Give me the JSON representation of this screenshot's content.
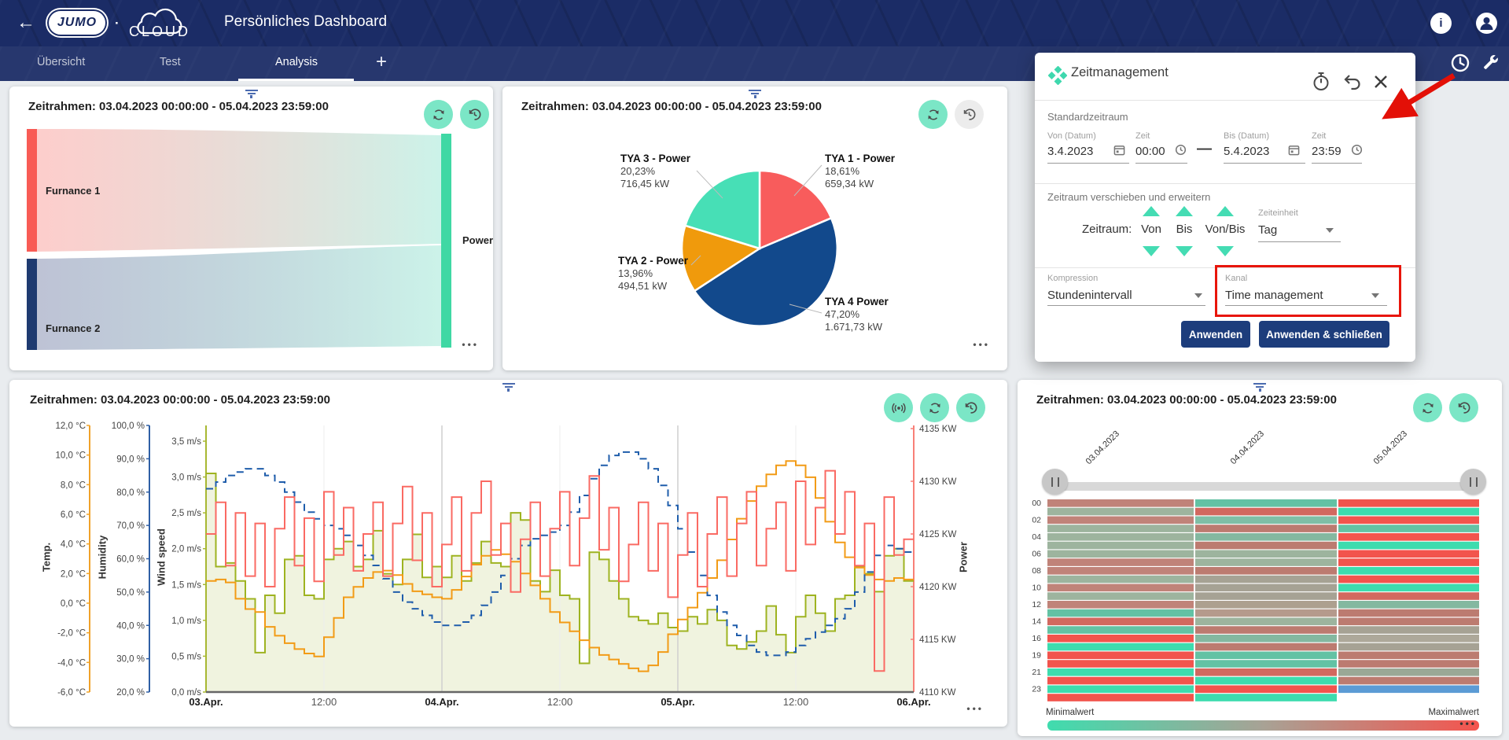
{
  "navbar": {
    "title": "Persönliches Dashboard",
    "brand": {
      "jumo": "JUMO",
      "separator": "·",
      "cloud": "CLOUD"
    }
  },
  "tabbar": {
    "tabs": [
      {
        "label": "Übersicht",
        "active": false
      },
      {
        "label": "Test",
        "active": false
      },
      {
        "label": "Analysis",
        "active": true
      }
    ],
    "add_label": "+"
  },
  "shared": {
    "timeframe_label": "Zeitrahmen: 03.04.2023 00:00:00 - 05.04.2023 23:59:00",
    "menu_dots": "•••"
  },
  "dialog": {
    "title": "Zeitmanagement",
    "standard": {
      "heading": "Standardzeitraum",
      "von_date_label": "Von (Datum)",
      "von_date": "3.4.2023",
      "von_time_label": "Zeit",
      "von_time": "00:00",
      "dash": "—",
      "bis_date_label": "Bis (Datum)",
      "bis_date": "5.4.2023",
      "bis_time_label": "Zeit",
      "bis_time": "23:59"
    },
    "shift": {
      "heading": "Zeitraum verschieben und erweitern",
      "row_label": "Zeitraum:",
      "col_von": "Von",
      "col_bis": "Bis",
      "col_vonbis": "Von/Bis",
      "unit_label": "Zeiteinheit",
      "unit_value": "Tag"
    },
    "kompression_label": "Kompression",
    "kompression_value": "Stundenintervall",
    "kanal_label": "Kanal",
    "kanal_value": "Time management",
    "apply_label": "Anwenden",
    "apply_close_label": "Anwenden & schließen"
  },
  "chart_data": [
    {
      "id": "sankey",
      "type": "sankey",
      "nodes": [
        {
          "label": "Furnance 1",
          "color": "#f85b55"
        },
        {
          "label": "Furnance 2",
          "color": "#1e3a70"
        },
        {
          "label": "Power",
          "color": "#3fd8a4"
        }
      ],
      "links": [
        {
          "source": "Furnance 1",
          "target": "Power"
        },
        {
          "source": "Furnance 2",
          "target": "Power"
        }
      ]
    },
    {
      "id": "pie",
      "type": "pie",
      "slices": [
        {
          "label": "TYA 1 - Power",
          "percent": 18.61,
          "percent_label": "18,61%",
          "value_label": "659,34 kW",
          "color": "#f85c5c"
        },
        {
          "label": "TYA 4 Power",
          "percent": 47.2,
          "percent_label": "47,20%",
          "value_label": "1.671,73 kW",
          "color": "#12498c"
        },
        {
          "label": "TYA 2 - Power",
          "percent": 13.96,
          "percent_label": "13,96%",
          "value_label": "494,51 kW",
          "color": "#f09a0c"
        },
        {
          "label": "TYA 3 - Power",
          "percent": 20.23,
          "percent_label": "20,23%",
          "value_label": "716,45 kW",
          "color": "#47dfb6"
        }
      ]
    },
    {
      "id": "timeseries",
      "type": "line",
      "axes": {
        "temp": {
          "label": "Temp.",
          "color": "#f0a22a",
          "min": -6,
          "max": 12,
          "ticks": [
            "12,0 °C",
            "10,0 °C",
            "8,0 °C",
            "6,0 °C",
            "4,0 °C",
            "2,0 °C",
            "0,0 °C",
            "-2,0 °C",
            "-4,0 °C",
            "-6,0 °C"
          ]
        },
        "humidity": {
          "label": "Humidity",
          "color": "#2f5fa5",
          "min": 20,
          "max": 100,
          "ticks": [
            "100,0 %",
            "90,0 %",
            "80,0 %",
            "70,0 %",
            "60,0 %",
            "50,0 %",
            "40,0 %",
            "30,0 %",
            "20,0 %"
          ]
        },
        "wind": {
          "label": "Wind speed",
          "color": "#a8b832",
          "min": 0,
          "max": 3.5,
          "ticks": [
            "3,5 m/s",
            "3,0 m/s",
            "2,5 m/s",
            "2,0 m/s",
            "1,5 m/s",
            "1,0 m/s",
            "0,5 m/s",
            "0,0 m/s"
          ]
        },
        "power": {
          "label": "Power",
          "color": "#f87f77",
          "min": 4110,
          "max": 4135,
          "ticks": [
            "4135 KW",
            "4130 KW",
            "4125 KW",
            "4120 KW",
            "4115 KW",
            "4110 KW"
          ]
        }
      },
      "xticks": [
        {
          "label": "03.Apr.",
          "bold": true
        },
        {
          "label": "12:00",
          "bold": false
        },
        {
          "label": "04.Apr.",
          "bold": true
        },
        {
          "label": "12:00",
          "bold": false
        },
        {
          "label": "05.Apr.",
          "bold": true
        },
        {
          "label": "12:00",
          "bold": false
        },
        {
          "label": "06.Apr.",
          "bold": true
        }
      ],
      "series": [
        {
          "name": "Wind speed",
          "axis": "wind",
          "style": "step-area",
          "color": "#9eb320",
          "fill": "#f0f3df",
          "values": [
            3.05,
            1.75,
            1.8,
            1.55,
            1.3,
            0.55,
            1.35,
            1.1,
            1.85,
            1.9,
            1.35,
            1.3,
            1.85,
            2.0,
            2.1,
            1.75,
            1.85,
            2.25,
            1.65,
            1.5,
            1.85,
            2.2,
            1.6,
            1.75,
            1.6,
            1.9,
            1.55,
            1.8,
            2.1,
            1.8,
            1.75,
            2.5,
            2.4,
            1.55,
            1.4,
            1.7,
            1.35,
            1.3,
            0.4,
            1.95,
            1.85,
            1.55,
            1.3,
            1.05,
            1.0,
            0.95,
            1.1,
            0.9,
            0.85,
            1.05,
            0.95,
            1.15,
            1.0,
            0.65,
            0.6,
            0.7,
            0.85,
            1.2,
            0.8,
            0.55,
            1.05,
            1.35,
            1.1,
            0.85,
            1.3,
            1.35,
            1.75,
            1.65,
            1.4,
            1.9,
            2.0,
            1.55
          ]
        },
        {
          "name": "Temp.",
          "axis": "temp",
          "style": "step",
          "color": "#f29b16",
          "values": [
            1.5,
            1.6,
            1.4,
            0.3,
            -0.4,
            -0.6,
            -1.6,
            -2.2,
            -2.7,
            -3.1,
            -3.4,
            -3.6,
            -2.3,
            -1.0,
            0.4,
            1.1,
            1.7,
            2.1,
            2.2,
            1.9,
            1.3,
            0.8,
            0.6,
            0.4,
            0.3,
            0.9,
            1.8,
            2.6,
            3.2,
            3.6,
            3.3,
            2.8,
            2.0,
            1.2,
            0.3,
            -0.6,
            -1.3,
            -1.9,
            -2.5,
            -3.0,
            -3.5,
            -3.8,
            -4.1,
            -4.4,
            -4.6,
            -4.2,
            -3.3,
            -2.1,
            -1.1,
            -0.3,
            0.7,
            1.7,
            2.9,
            4.3,
            5.7,
            6.9,
            7.9,
            8.7,
            9.3,
            9.6,
            9.3,
            8.5,
            7.1,
            5.5,
            4.1,
            3.1,
            2.4,
            1.9,
            1.6,
            1.5,
            1.7,
            1.6
          ]
        },
        {
          "name": "Humidity",
          "axis": "humidity",
          "style": "step-dashed",
          "color": "#1f5dab",
          "values": [
            81,
            83,
            85,
            86,
            87,
            87,
            85,
            83,
            80,
            77,
            74,
            72,
            70,
            69,
            67,
            64,
            61,
            58,
            54,
            50,
            47,
            45,
            43,
            41,
            40,
            40,
            41,
            43,
            46,
            50,
            55,
            60,
            64,
            66,
            67,
            68,
            70,
            74,
            79,
            84,
            88,
            91,
            92,
            92,
            90,
            87,
            82,
            76,
            69,
            62,
            55,
            49,
            44,
            40,
            37,
            34,
            32,
            31,
            31,
            32,
            34,
            36,
            38,
            40,
            42,
            45,
            50,
            56,
            61,
            64,
            63,
            62
          ]
        },
        {
          "name": "Power",
          "axis": "power",
          "style": "step",
          "color": "#fa6a63",
          "values": [
            4125,
            4128,
            4122,
            4127,
            4121,
            4126,
            4120,
            4125.5,
            4128.5,
            4122,
            4126.5,
            4120.5,
            4129,
            4123,
            4127.5,
            4121.5,
            4125,
            4128,
            4121,
            4126,
            4129.5,
            4122.5,
            4127,
            4120,
            4124,
            4128.5,
            4121.5,
            4127,
            4130,
            4123,
            4126,
            4119.5,
            4124.5,
            4128,
            4121,
            4125.5,
            4129,
            4122,
            4126.5,
            4130.5,
            4123.5,
            4127.5,
            4120.5,
            4124,
            4128,
            4121.5,
            4126,
            4119,
            4123,
            4127,
            4120,
            4125,
            4128.5,
            4121,
            4126,
            4129,
            4122,
            4125.5,
            4128,
            4121.5,
            4130,
            4124,
            4127.5,
            4131,
            4125,
            4129,
            4122,
            4126,
            4112,
            4128.5,
            4123,
            4124.5
          ]
        }
      ]
    },
    {
      "id": "heatmap",
      "type": "heatmap",
      "columns": [
        "03.04.2023",
        "04.04.2023",
        "05.04.2023"
      ],
      "row_labels": {
        "0": "00",
        "2": "02",
        "4": "04",
        "6": "06",
        "8": "08",
        "10": "10",
        "12": "12",
        "14": "14",
        "16": "16",
        "18": "19",
        "20": "21",
        "22": "23"
      },
      "cells": [
        [
          "#c08379",
          "#63c2a4",
          "#f2544d"
        ],
        [
          "#9db49e",
          "#d2685f",
          "#3ddcae"
        ],
        [
          "#c08379",
          "#7fbfa6",
          "#f2544d"
        ],
        [
          "#9db49e",
          "#bc7b70",
          "#63c2a4"
        ],
        [
          "#9db49e",
          "#84b8a0",
          "#f2544d"
        ],
        [
          "#9db49e",
          "#bc7b70",
          "#3ddcae"
        ],
        [
          "#9db49e",
          "#9db49e",
          "#f2544d"
        ],
        [
          "#c08379",
          "#9db49e",
          "#f2544d"
        ],
        [
          "#c08379",
          "#bc7b70",
          "#3ddcae"
        ],
        [
          "#9db49e",
          "#a6a294",
          "#f2544d"
        ],
        [
          "#c08379",
          "#a6a294",
          "#3ddcae"
        ],
        [
          "#9db49e",
          "#a6a294",
          "#d2685f"
        ],
        [
          "#c08379",
          "#ada08f",
          "#84b8a0"
        ],
        [
          "#63c2a4",
          "#b59a8c",
          "#bc7b70"
        ],
        [
          "#d2685f",
          "#9db49e",
          "#bc7b70"
        ],
        [
          "#63c2a4",
          "#bc7b70",
          "#a6a294"
        ],
        [
          "#f2544d",
          "#84b8a0",
          "#ada89a"
        ],
        [
          "#3ddcae",
          "#bc7b70",
          "#a6a294"
        ],
        [
          "#f2544d",
          "#63c2a4",
          "#bc7b70"
        ],
        [
          "#f2544d",
          "#63c2a4",
          "#bc7b70"
        ],
        [
          "#3ddcae",
          "#d2685f",
          "#9aa896"
        ],
        [
          "#f2544d",
          "#3ddcae",
          "#bc7b70"
        ],
        [
          "#3ddcae",
          "#f2544d",
          "#5b9bd5"
        ],
        [
          "#f2544d",
          "#3ddcae",
          null
        ]
      ],
      "legend": {
        "min": "Minimalwert",
        "max": "Maximalwert",
        "gradient": [
          "#3fdcae",
          "#a8a295",
          "#f4544e"
        ]
      }
    }
  ]
}
